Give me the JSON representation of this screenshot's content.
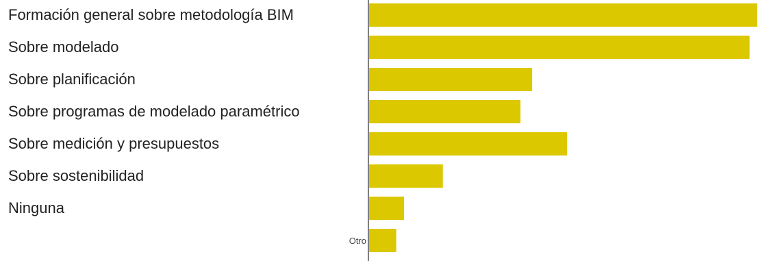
{
  "chart_data": {
    "type": "bar",
    "orientation": "horizontal",
    "categories": [
      "Formación general sobre metodología BIM",
      "Sobre modelado",
      "Sobre planificación",
      "Sobre programas de modelado paramétrico",
      "Sobre medición y presupuestos",
      "Sobre sostenibilidad",
      "Ninguna",
      "Otro"
    ],
    "values": [
      100,
      98,
      42,
      39,
      51,
      19,
      9,
      7
    ],
    "title": "",
    "xlabel": "",
    "ylabel": "",
    "xlim": [
      0,
      100
    ],
    "grid": false,
    "legend": "none",
    "bar_color": "#dcc800",
    "axis_color": "#555555",
    "label_color": "#222222"
  }
}
